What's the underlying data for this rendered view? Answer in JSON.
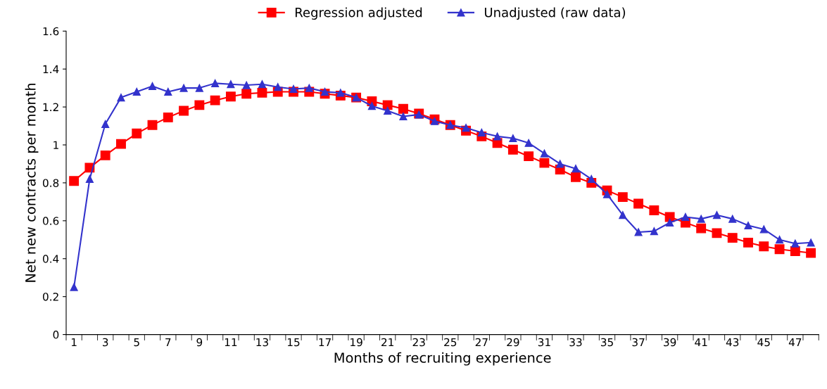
{
  "chart_data": {
    "type": "line",
    "xlabel": "Months of recruiting experience",
    "ylabel": "Net new contracts per month",
    "categories": [
      "1",
      null,
      "3",
      null,
      "5",
      null,
      "7",
      null,
      "9",
      null,
      "11",
      null,
      "13",
      null,
      "15",
      null,
      "17",
      null,
      "19",
      null,
      "21",
      null,
      "23",
      null,
      "25",
      null,
      "27",
      null,
      "29",
      null,
      "31",
      null,
      "33",
      null,
      "35",
      null,
      "37",
      null,
      "39",
      null,
      "41",
      null,
      "43",
      null,
      "45",
      null,
      "47",
      null
    ],
    "series": [
      {
        "name": "Regression adjusted",
        "color": "#ff0000",
        "marker": "square",
        "values": [
          0.81,
          0.88,
          0.945,
          1.005,
          1.06,
          1.105,
          1.145,
          1.18,
          1.21,
          1.235,
          1.255,
          1.27,
          1.275,
          1.28,
          1.28,
          1.28,
          1.27,
          1.26,
          1.25,
          1.23,
          1.21,
          1.19,
          1.165,
          1.135,
          1.105,
          1.075,
          1.045,
          1.01,
          0.975,
          0.94,
          0.905,
          0.87,
          0.83,
          0.8,
          0.76,
          0.725,
          0.69,
          0.655,
          0.62,
          0.59,
          0.56,
          0.535,
          0.51,
          0.485,
          0.465,
          0.45,
          0.44,
          0.43
        ]
      },
      {
        "name": "Unadjusted (raw data)",
        "color": "#3333cc",
        "marker": "triangle",
        "values": [
          0.25,
          0.82,
          1.11,
          1.25,
          1.28,
          1.31,
          1.28,
          1.3,
          1.3,
          1.325,
          1.32,
          1.315,
          1.32,
          1.305,
          1.295,
          1.3,
          1.28,
          1.275,
          1.25,
          1.205,
          1.18,
          1.15,
          1.16,
          1.125,
          1.105,
          1.09,
          1.065,
          1.045,
          1.035,
          1.01,
          0.955,
          0.9,
          0.875,
          0.82,
          0.74,
          0.63,
          0.54,
          0.545,
          0.59,
          0.62,
          0.61,
          0.63,
          0.61,
          0.575,
          0.555,
          0.5,
          0.48,
          0.485
        ]
      }
    ],
    "ylim": [
      0,
      1.6
    ],
    "yticks": [
      0,
      0.2,
      0.4,
      0.6,
      0.8,
      1,
      1.2,
      1.4,
      1.6
    ],
    "legend": "top",
    "grid": false,
    "line_style": "solid"
  }
}
